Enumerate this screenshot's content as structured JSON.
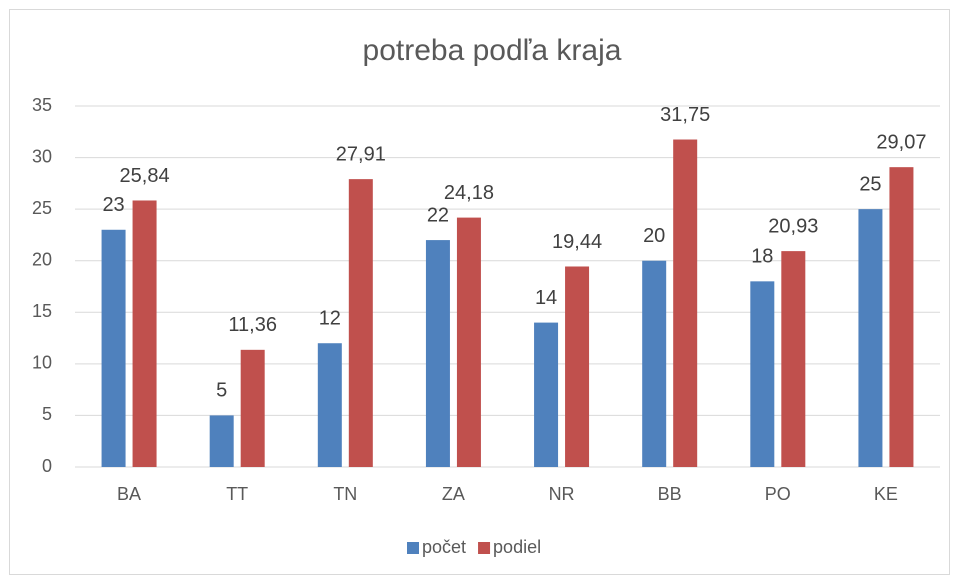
{
  "chart_data": {
    "type": "bar",
    "title": "potreba podľa kraja",
    "categories": [
      "BA",
      "TT",
      "TN",
      "ZA",
      "NR",
      "BB",
      "PO",
      "KE"
    ],
    "series": [
      {
        "name": "počet",
        "color": "#4f81bd",
        "values": [
          23,
          5,
          12,
          22,
          14,
          20,
          18,
          25
        ]
      },
      {
        "name": "podiel",
        "color": "#c0504d",
        "values": [
          25.84,
          11.36,
          27.91,
          24.18,
          19.44,
          31.75,
          20.93,
          29.07
        ],
        "value_labels": [
          "25,84",
          "11,36",
          "27,91",
          "24,18",
          "19,44",
          "31,75",
          "20,93",
          "29,07"
        ]
      }
    ],
    "ylim": [
      0,
      35
    ],
    "yticks": [
      0,
      5,
      10,
      15,
      20,
      25,
      30,
      35
    ],
    "grid": true,
    "legend": "bottom"
  }
}
